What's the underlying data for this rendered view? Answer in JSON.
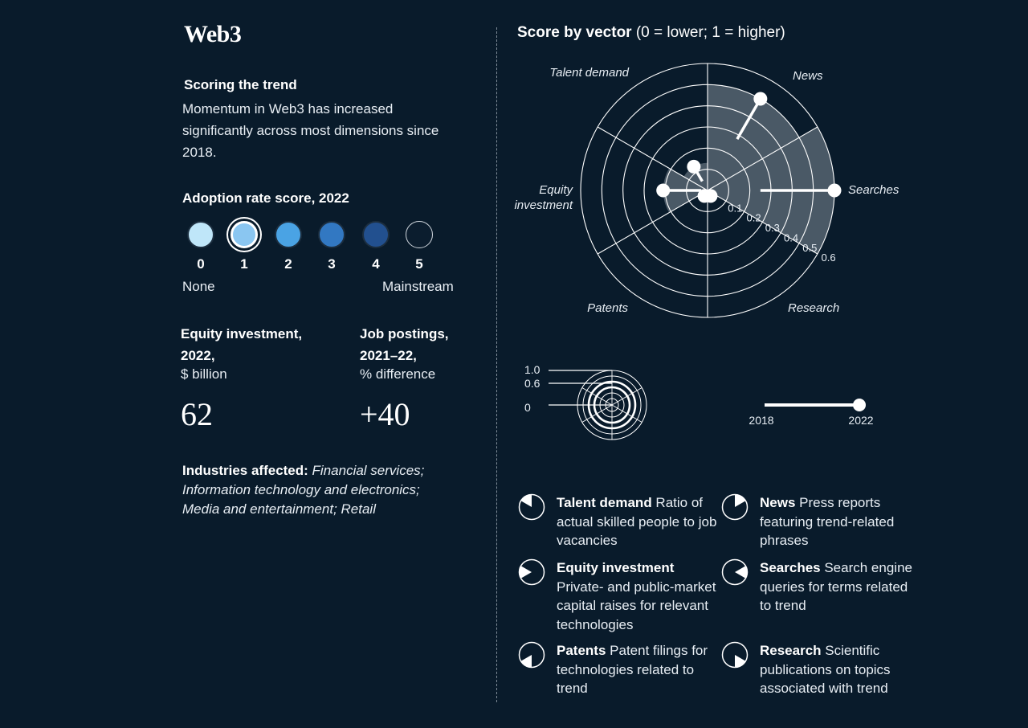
{
  "title": "Web3",
  "scoring": {
    "heading": "Scoring the trend",
    "text": "Momentum in Web3 has increased significantly across most dimensions since 2018."
  },
  "adoption": {
    "heading": "Adoption rate score, 2022",
    "selected": 1,
    "levels": [
      {
        "label": "0",
        "color": "#bfe6f9"
      },
      {
        "label": "1",
        "color": "#8ac6f1"
      },
      {
        "label": "2",
        "color": "#4aa3e4"
      },
      {
        "label": "3",
        "color": "#3278c2"
      },
      {
        "label": "4",
        "color": "#22508f"
      },
      {
        "label": "5",
        "color": "#0b1d2e"
      }
    ],
    "low_label": "None",
    "high_label": "Mainstream"
  },
  "metrics": [
    {
      "heading_1": "Equity investment,",
      "heading_2": "2022,",
      "unit": "$ billion",
      "value": "62"
    },
    {
      "heading_1": "Job postings,",
      "heading_2": "2021–22,",
      "unit": "% difference",
      "value": "+40"
    }
  ],
  "industries": {
    "label": "Industries affected:",
    "value": "Financial services; Information technology and electronics; Media and entertainment; Retail"
  },
  "chart_title": {
    "bold": "Score by vector",
    "rest": " (0 = lower; 1 = higher)"
  },
  "chart_data": {
    "type": "radial",
    "title": "Score by vector (0 = lower; 1 = higher)",
    "ring_labels": [
      "0.1",
      "0.2",
      "0.3",
      "0.4",
      "0.5",
      "0.6"
    ],
    "rmax": 0.6,
    "vectors": [
      {
        "name": "News",
        "v2018": 0.28,
        "v2022": 0.5
      },
      {
        "name": "Searches",
        "v2018": 0.25,
        "v2022": 0.6
      },
      {
        "name": "Research",
        "v2018": 0.03,
        "v2022": 0.03
      },
      {
        "name": "Patents",
        "v2018": 0.03,
        "v2022": 0.03
      },
      {
        "name": "Equity investment",
        "v2018": 0.03,
        "v2022": 0.21
      },
      {
        "name": "Talent demand",
        "v2018": 0.05,
        "v2022": 0.13
      }
    ],
    "vector_labels": {
      "talent": "Talent demand",
      "news": "News",
      "searches": "Searches",
      "research": "Research",
      "patents": "Patents",
      "equity_1": "Equity",
      "equity_2": "investment"
    }
  },
  "key": {
    "ticks": [
      "1.0",
      "0.6",
      "0"
    ],
    "year_start": "2018",
    "year_end": "2022"
  },
  "legend": [
    {
      "name": "Talent demand",
      "desc": " Ratio of actual skilled people to job vacancies"
    },
    {
      "name": "News",
      "desc": " Press reports featuring trend-related phrases"
    },
    {
      "name": "Equity investment",
      "desc": " Private- and public-market capital raises for relevant technologies"
    },
    {
      "name": "Searches",
      "desc": " Search engine queries for terms related to trend"
    },
    {
      "name": "Patents",
      "desc": " Patent filings for technologies related to trend"
    },
    {
      "name": "Research",
      "desc": " Scientific publications on topics associated with trend"
    }
  ],
  "colors": {
    "background": "#091b2b",
    "sector_fill": "#4a5966",
    "line": "#ffffff"
  }
}
